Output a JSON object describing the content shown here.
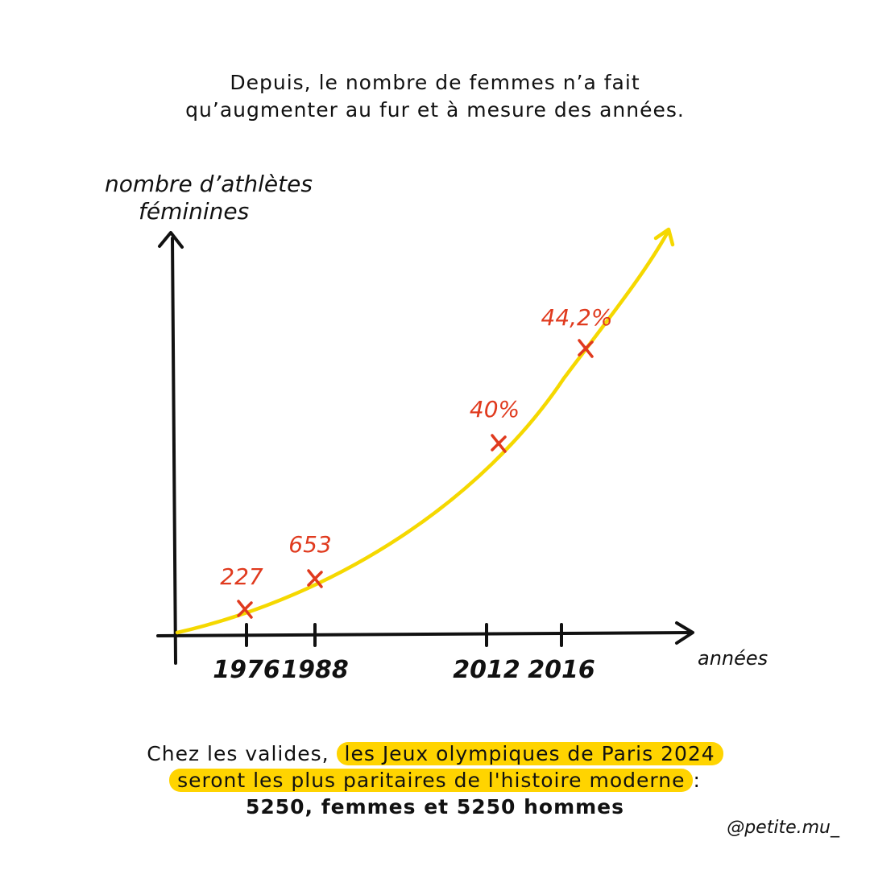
{
  "headline": {
    "line1": "Depuis, le nombre de femmes n’a fait",
    "line2": "qu’augmenter au fur et à mesure des années."
  },
  "chart_data": {
    "type": "line",
    "ylabel_line1": "nombre d’athlètes",
    "ylabel_line2": "féminines",
    "xlabel": "années",
    "categories": [
      "1976",
      "1988",
      "2012",
      "2016"
    ],
    "points": [
      {
        "x": "1976",
        "label": "227"
      },
      {
        "x": "1988",
        "label": "653"
      },
      {
        "x": "2012",
        "label": "40%"
      },
      {
        "x": "2016",
        "label": "44,2%"
      }
    ],
    "line_color": "#f5d800",
    "marker_color": "#e03a1e"
  },
  "bottom": {
    "prefix": "Chez les valides,",
    "highlight1": "les Jeux olympiques de Paris 2024",
    "highlight2": "seront les plus paritaires de l'histoire moderne",
    "suffix": ":",
    "line3": "5250, femmes et 5250 hommes"
  },
  "signature": "@petite.mu_",
  "colors": {
    "highlight": "#ffd400",
    "accent_red": "#e03a1e",
    "curve_yellow": "#f5d800",
    "ink": "#111111"
  }
}
